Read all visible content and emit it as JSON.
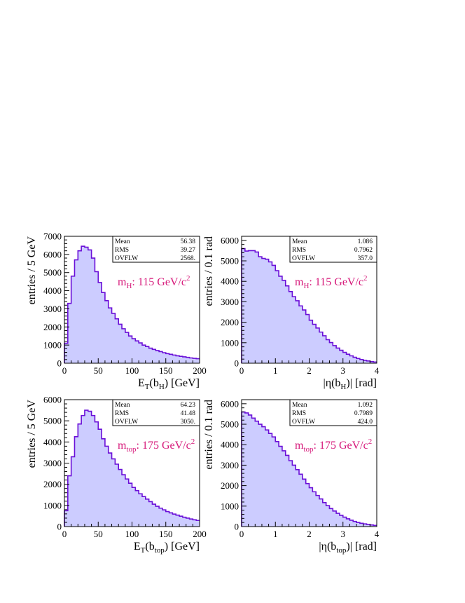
{
  "chart_data": [
    {
      "id": "p1",
      "type": "histogram",
      "xlabel": {
        "main": "E",
        "sub1": "T",
        "mid": "(b",
        "sub2": "H",
        "tail": ") [GeV]"
      },
      "ylabel": "entries / 5 GeV",
      "xlim": [
        0,
        200
      ],
      "ylim": [
        0,
        7000
      ],
      "x_ticks": [
        "0",
        "50",
        "100",
        "150",
        "200"
      ],
      "y_ticks": [
        "0",
        "1000",
        "2000",
        "3000",
        "4000",
        "5000",
        "6000",
        "7000"
      ],
      "bin_width": 5,
      "values": [
        1100,
        3300,
        4800,
        5700,
        6200,
        6450,
        6400,
        6250,
        5800,
        5050,
        4450,
        3900,
        3450,
        3050,
        2750,
        2450,
        2150,
        1900,
        1700,
        1500,
        1350,
        1230,
        1120,
        1000,
        920,
        830,
        760,
        700,
        640,
        580,
        530,
        490,
        450,
        410,
        380,
        350,
        320,
        290,
        270,
        250
      ],
      "stats": [
        {
          "label": "Mean",
          "value": "56.38"
        },
        {
          "label": "RMS",
          "value": "39.27"
        },
        {
          "label": "OVFLW",
          "value": "2568."
        }
      ],
      "annotation": {
        "main": "m",
        "sub": "H",
        "text": ": 115 GeV/c",
        "sup": "2"
      }
    },
    {
      "id": "p2",
      "type": "histogram",
      "xlabel": {
        "main": "|η(b",
        "sub1": "H",
        "tail": ")| [rad]"
      },
      "ylabel": "entries / 0.1 rad",
      "xlim": [
        0,
        4
      ],
      "ylim": [
        0,
        6200
      ],
      "x_ticks": [
        "0",
        "1",
        "2",
        "3",
        "4"
      ],
      "y_ticks": [
        "0",
        "1000",
        "2000",
        "3000",
        "4000",
        "5000",
        "6000"
      ],
      "bin_width": 0.1,
      "values": [
        5600,
        5480,
        5500,
        5500,
        5430,
        5200,
        5120,
        5080,
        4950,
        4780,
        4520,
        4250,
        4050,
        3780,
        3500,
        3250,
        3050,
        2800,
        2600,
        2380,
        2100,
        1900,
        1720,
        1520,
        1340,
        1150,
        1010,
        860,
        740,
        630,
        530,
        440,
        360,
        290,
        230,
        180,
        140,
        110,
        80,
        60
      ],
      "stats": [
        {
          "label": "Mean",
          "value": "1.086"
        },
        {
          "label": "RMS",
          "value": "0.7962"
        },
        {
          "label": "OVFLW",
          "value": "357.0"
        }
      ],
      "annotation": {
        "main": "m",
        "sub": "H",
        "text": ": 115 GeV/c",
        "sup": "2"
      }
    },
    {
      "id": "p3",
      "type": "histogram",
      "xlabel": {
        "main": "E",
        "sub1": "T",
        "mid": "(b",
        "sub2": "top",
        "tail": ") [GeV]"
      },
      "ylabel": "entries / 5 GeV",
      "xlim": [
        0,
        200
      ],
      "ylim": [
        0,
        6000
      ],
      "x_ticks": [
        "0",
        "50",
        "100",
        "150",
        "200"
      ],
      "y_ticks": [
        "0",
        "1000",
        "2000",
        "3000",
        "4000",
        "5000",
        "6000"
      ],
      "bin_width": 5,
      "values": [
        750,
        2400,
        3300,
        4250,
        4850,
        5250,
        5500,
        5450,
        5250,
        4950,
        4600,
        4150,
        3800,
        3480,
        3200,
        2950,
        2700,
        2450,
        2250,
        2050,
        1850,
        1700,
        1550,
        1420,
        1300,
        1180,
        1060,
        960,
        870,
        790,
        710,
        650,
        590,
        540,
        490,
        440,
        400,
        360,
        320,
        290
      ],
      "stats": [
        {
          "label": "Mean",
          "value": "64.23"
        },
        {
          "label": "RMS",
          "value": "41.48"
        },
        {
          "label": "OVFLW",
          "value": "3050."
        }
      ],
      "annotation": {
        "main": "m",
        "sub": "top",
        "text": ": 175 GeV/c",
        "sup": "2"
      }
    },
    {
      "id": "p4",
      "type": "histogram",
      "xlabel": {
        "main": "|η(b",
        "sub1": "top",
        "tail": ")| [rad]"
      },
      "ylabel": "entries / 0.1 rad",
      "xlim": [
        0,
        4
      ],
      "ylim": [
        0,
        6200
      ],
      "x_ticks": [
        "0",
        "1",
        "2",
        "3",
        "4"
      ],
      "y_ticks": [
        "0",
        "1000",
        "2000",
        "3000",
        "4000",
        "5000",
        "6000"
      ],
      "bin_width": 0.1,
      "values": [
        5600,
        5550,
        5450,
        5300,
        5150,
        5000,
        4880,
        4720,
        4550,
        4380,
        4150,
        3920,
        3700,
        3480,
        3220,
        3000,
        2780,
        2560,
        2320,
        2100,
        1900,
        1700,
        1520,
        1350,
        1170,
        1020,
        880,
        760,
        650,
        550,
        460,
        380,
        310,
        250,
        200,
        160,
        130,
        100,
        80,
        60
      ],
      "stats": [
        {
          "label": "Mean",
          "value": "1.092"
        },
        {
          "label": "RMS",
          "value": "0.7989"
        },
        {
          "label": "OVFLW",
          "value": "424.0"
        }
      ],
      "annotation": {
        "main": "m",
        "sub": "top",
        "text": ": 175 GeV/c",
        "sup": "2"
      }
    }
  ],
  "colors": {
    "fill": "#ccccff",
    "line": "#6a0fd8",
    "annotation": "#d6197a"
  }
}
